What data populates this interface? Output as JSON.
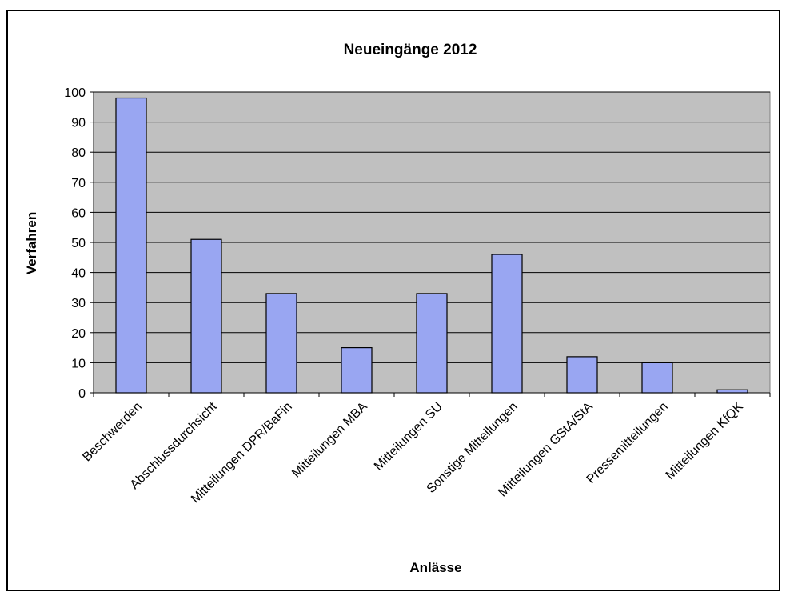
{
  "chart_data": {
    "type": "bar",
    "title": "Neueingänge 2012",
    "xlabel": "Anlässe",
    "ylabel": "Verfahren",
    "ylim": [
      0,
      100
    ],
    "yticks": [
      0,
      10,
      20,
      30,
      40,
      50,
      60,
      70,
      80,
      90,
      100
    ],
    "grid": true,
    "legend": "none",
    "categories": [
      "Beschwerden",
      "Abschlussdurchsicht",
      "Mitteilungen DPR/BaFin",
      "Mitteilungen MBA",
      "Mitteilungen SU",
      "Sonstige Mitteilungen",
      "Mitteilungen GStA/StA",
      "Pressemitteilungen",
      "Mitteilungen KfQK"
    ],
    "values": [
      98,
      51,
      33,
      15,
      33,
      46,
      12,
      10,
      1
    ],
    "colors": {
      "bar": "#99A6F2",
      "plot_background": "#C0C0C0",
      "grid": "#000000",
      "axis": "#000000"
    }
  }
}
